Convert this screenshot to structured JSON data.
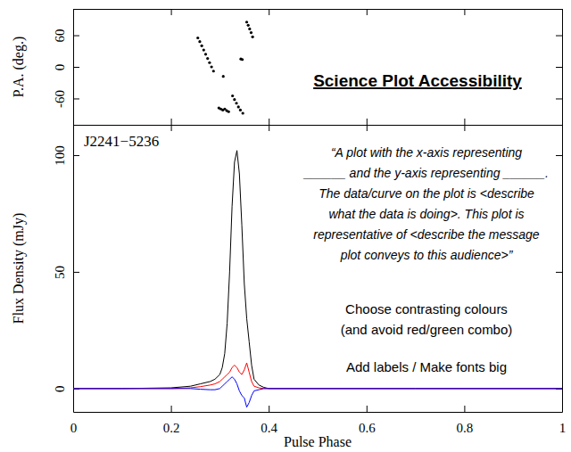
{
  "chart_data": [
    {
      "type": "scatter",
      "ylabel": "P.A. (deg.)",
      "x": [
        0.255,
        0.259,
        0.263,
        0.267,
        0.271,
        0.275,
        0.279,
        0.283,
        0.287,
        0.298,
        0.302,
        0.306,
        0.307,
        0.31,
        0.314,
        0.318,
        0.326,
        0.33,
        0.334,
        0.338,
        0.342,
        0.343,
        0.346,
        0.347,
        0.355,
        0.358,
        0.361,
        0.364,
        0.367
      ],
      "series": [
        {
          "color": "#000000",
          "marker": "dot",
          "values": [
            55,
            48,
            40,
            32,
            24,
            16,
            8,
            0,
            -8,
            -78,
            -80,
            -82,
            -18,
            -80,
            -83,
            -85,
            -55,
            -62,
            -69,
            -76,
            -82,
            15,
            14,
            -88,
            85,
            79,
            72,
            65,
            57
          ]
        }
      ],
      "xlim": [
        0,
        1
      ],
      "xticks": [
        0,
        0.2,
        0.4,
        0.6,
        0.8,
        1
      ],
      "ylim": [
        -110,
        110
      ],
      "yticks": [
        -60,
        0,
        60
      ],
      "tick_labels": "y",
      "annotations": [
        "Science Plot Accessibility"
      ]
    },
    {
      "type": "line",
      "title": "J2241−5236",
      "xlabel": "Pulse Phase",
      "ylabel": "Flux Density (mJy)",
      "x": [
        0,
        0.1,
        0.2,
        0.24,
        0.26,
        0.28,
        0.29,
        0.3,
        0.305,
        0.31,
        0.315,
        0.32,
        0.325,
        0.33,
        0.335,
        0.34,
        0.345,
        0.35,
        0.355,
        0.36,
        0.365,
        0.37,
        0.38,
        0.39,
        0.4,
        0.5,
        0.7,
        1
      ],
      "series": [
        {
          "color": "#000000",
          "values": [
            0,
            0,
            0.3,
            1,
            2,
            3,
            4,
            6,
            9,
            15,
            28,
            50,
            78,
            97,
            102,
            92,
            70,
            45,
            30,
            20,
            10,
            4,
            1.5,
            0.5,
            0,
            0,
            0,
            0
          ]
        },
        {
          "color": "#ff0000",
          "values": [
            0,
            0,
            0,
            0.3,
            0.8,
            1.5,
            2,
            3,
            4,
            5,
            6,
            7,
            9,
            10,
            9,
            7,
            6,
            8,
            11,
            7,
            3,
            1,
            0.3,
            0,
            0,
            0,
            0,
            0
          ]
        },
        {
          "color": "#0000ff",
          "values": [
            0,
            0,
            0,
            0,
            -0.3,
            -0.5,
            -0.5,
            0,
            1,
            2,
            3,
            4,
            5,
            4,
            2,
            -1,
            -3,
            -4,
            -8,
            -6,
            -3,
            -1,
            -0.5,
            0,
            0,
            0,
            0,
            0
          ]
        }
      ],
      "xlim": [
        0,
        1
      ],
      "xticks": [
        0,
        0.2,
        0.4,
        0.6,
        0.8,
        1
      ],
      "ylim": [
        -10,
        113
      ],
      "yticks": [
        0,
        50,
        100
      ],
      "annotations": [
        "“A plot with the x-axis representing",
        "______ and the y-axis representing ______.",
        "The data/curve on the plot is <describe",
        "what the data is doing>. This plot is",
        "representative of <describe the message",
        "plot conveys to this audience>”",
        "Choose contrasting colours",
        "(and avoid red/green combo)",
        "Add labels / Make fonts big"
      ]
    }
  ]
}
